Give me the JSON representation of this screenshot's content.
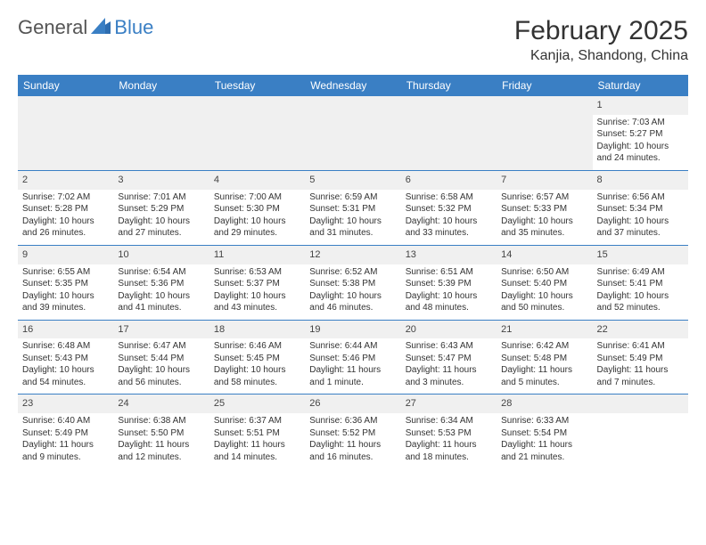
{
  "brand": {
    "part1": "General",
    "part2": "Blue"
  },
  "title": "February 2025",
  "location": "Kanjia, Shandong, China",
  "colors": {
    "header_bg": "#3a7fc4",
    "header_text": "#ffffff",
    "daynum_bg": "#f0f0f0",
    "text": "#333333",
    "rule": "#3a7fc4"
  },
  "day_names": [
    "Sunday",
    "Monday",
    "Tuesday",
    "Wednesday",
    "Thursday",
    "Friday",
    "Saturday"
  ],
  "weeks": [
    [
      null,
      null,
      null,
      null,
      null,
      null,
      {
        "n": "1",
        "sr": "Sunrise: 7:03 AM",
        "ss": "Sunset: 5:27 PM",
        "dl": "Daylight: 10 hours and 24 minutes."
      }
    ],
    [
      {
        "n": "2",
        "sr": "Sunrise: 7:02 AM",
        "ss": "Sunset: 5:28 PM",
        "dl": "Daylight: 10 hours and 26 minutes."
      },
      {
        "n": "3",
        "sr": "Sunrise: 7:01 AM",
        "ss": "Sunset: 5:29 PM",
        "dl": "Daylight: 10 hours and 27 minutes."
      },
      {
        "n": "4",
        "sr": "Sunrise: 7:00 AM",
        "ss": "Sunset: 5:30 PM",
        "dl": "Daylight: 10 hours and 29 minutes."
      },
      {
        "n": "5",
        "sr": "Sunrise: 6:59 AM",
        "ss": "Sunset: 5:31 PM",
        "dl": "Daylight: 10 hours and 31 minutes."
      },
      {
        "n": "6",
        "sr": "Sunrise: 6:58 AM",
        "ss": "Sunset: 5:32 PM",
        "dl": "Daylight: 10 hours and 33 minutes."
      },
      {
        "n": "7",
        "sr": "Sunrise: 6:57 AM",
        "ss": "Sunset: 5:33 PM",
        "dl": "Daylight: 10 hours and 35 minutes."
      },
      {
        "n": "8",
        "sr": "Sunrise: 6:56 AM",
        "ss": "Sunset: 5:34 PM",
        "dl": "Daylight: 10 hours and 37 minutes."
      }
    ],
    [
      {
        "n": "9",
        "sr": "Sunrise: 6:55 AM",
        "ss": "Sunset: 5:35 PM",
        "dl": "Daylight: 10 hours and 39 minutes."
      },
      {
        "n": "10",
        "sr": "Sunrise: 6:54 AM",
        "ss": "Sunset: 5:36 PM",
        "dl": "Daylight: 10 hours and 41 minutes."
      },
      {
        "n": "11",
        "sr": "Sunrise: 6:53 AM",
        "ss": "Sunset: 5:37 PM",
        "dl": "Daylight: 10 hours and 43 minutes."
      },
      {
        "n": "12",
        "sr": "Sunrise: 6:52 AM",
        "ss": "Sunset: 5:38 PM",
        "dl": "Daylight: 10 hours and 46 minutes."
      },
      {
        "n": "13",
        "sr": "Sunrise: 6:51 AM",
        "ss": "Sunset: 5:39 PM",
        "dl": "Daylight: 10 hours and 48 minutes."
      },
      {
        "n": "14",
        "sr": "Sunrise: 6:50 AM",
        "ss": "Sunset: 5:40 PM",
        "dl": "Daylight: 10 hours and 50 minutes."
      },
      {
        "n": "15",
        "sr": "Sunrise: 6:49 AM",
        "ss": "Sunset: 5:41 PM",
        "dl": "Daylight: 10 hours and 52 minutes."
      }
    ],
    [
      {
        "n": "16",
        "sr": "Sunrise: 6:48 AM",
        "ss": "Sunset: 5:43 PM",
        "dl": "Daylight: 10 hours and 54 minutes."
      },
      {
        "n": "17",
        "sr": "Sunrise: 6:47 AM",
        "ss": "Sunset: 5:44 PM",
        "dl": "Daylight: 10 hours and 56 minutes."
      },
      {
        "n": "18",
        "sr": "Sunrise: 6:46 AM",
        "ss": "Sunset: 5:45 PM",
        "dl": "Daylight: 10 hours and 58 minutes."
      },
      {
        "n": "19",
        "sr": "Sunrise: 6:44 AM",
        "ss": "Sunset: 5:46 PM",
        "dl": "Daylight: 11 hours and 1 minute."
      },
      {
        "n": "20",
        "sr": "Sunrise: 6:43 AM",
        "ss": "Sunset: 5:47 PM",
        "dl": "Daylight: 11 hours and 3 minutes."
      },
      {
        "n": "21",
        "sr": "Sunrise: 6:42 AM",
        "ss": "Sunset: 5:48 PM",
        "dl": "Daylight: 11 hours and 5 minutes."
      },
      {
        "n": "22",
        "sr": "Sunrise: 6:41 AM",
        "ss": "Sunset: 5:49 PM",
        "dl": "Daylight: 11 hours and 7 minutes."
      }
    ],
    [
      {
        "n": "23",
        "sr": "Sunrise: 6:40 AM",
        "ss": "Sunset: 5:49 PM",
        "dl": "Daylight: 11 hours and 9 minutes."
      },
      {
        "n": "24",
        "sr": "Sunrise: 6:38 AM",
        "ss": "Sunset: 5:50 PM",
        "dl": "Daylight: 11 hours and 12 minutes."
      },
      {
        "n": "25",
        "sr": "Sunrise: 6:37 AM",
        "ss": "Sunset: 5:51 PM",
        "dl": "Daylight: 11 hours and 14 minutes."
      },
      {
        "n": "26",
        "sr": "Sunrise: 6:36 AM",
        "ss": "Sunset: 5:52 PM",
        "dl": "Daylight: 11 hours and 16 minutes."
      },
      {
        "n": "27",
        "sr": "Sunrise: 6:34 AM",
        "ss": "Sunset: 5:53 PM",
        "dl": "Daylight: 11 hours and 18 minutes."
      },
      {
        "n": "28",
        "sr": "Sunrise: 6:33 AM",
        "ss": "Sunset: 5:54 PM",
        "dl": "Daylight: 11 hours and 21 minutes."
      },
      null
    ]
  ]
}
